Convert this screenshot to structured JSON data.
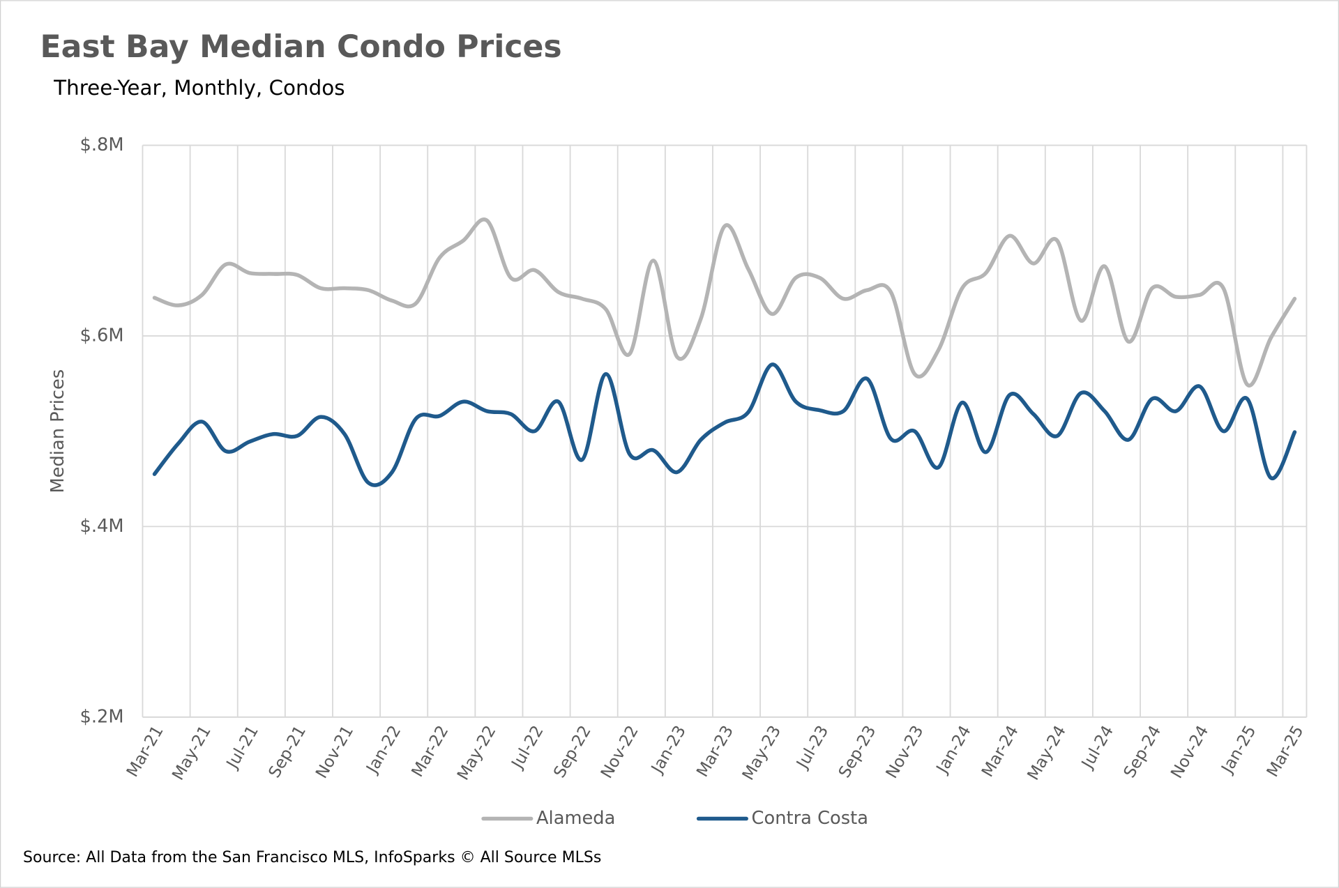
{
  "chart_data": {
    "type": "line",
    "title": "East Bay Median Condo Prices",
    "subtitle": "Three-Year, Monthly, Condos",
    "y_label": "Median Prices",
    "source": "Source: All Data from the San Francisco MLS, InfoSparks © All Source MLSs",
    "categories": [
      "Mar-21",
      null,
      "May-21",
      null,
      "Jul-21",
      null,
      "Sep-21",
      null,
      "Nov-21",
      null,
      "Jan-22",
      null,
      "Mar-22",
      null,
      "May-22",
      null,
      "Jul-22",
      null,
      "Sep-22",
      null,
      "Nov-22",
      null,
      "Jan-23",
      null,
      "Mar-23",
      null,
      "May-23",
      null,
      "Jul-23",
      null,
      "Sep-23",
      null,
      "Nov-23",
      null,
      "Jan-24",
      null,
      "Mar-24",
      null,
      "May-24",
      null,
      "Jul-24",
      null,
      "Sep-24",
      null,
      "Nov-24",
      null,
      "Jan-25",
      null,
      "Mar-25"
    ],
    "series": [
      {
        "name": "Alameda",
        "color": "#b4b4b4",
        "values": [
          640000,
          632000,
          643000,
          675000,
          666000,
          665000,
          664000,
          650000,
          650000,
          648000,
          637000,
          634000,
          682000,
          700000,
          721000,
          661000,
          669000,
          646000,
          639000,
          628000,
          581000,
          679000,
          578000,
          618000,
          715000,
          670000,
          623000,
          661000,
          661000,
          639000,
          648000,
          646000,
          560000,
          585000,
          650000,
          666000,
          705000,
          676000,
          700000,
          616000,
          673000,
          594000,
          650000,
          641000,
          643000,
          650000,
          549000,
          598000,
          639000
        ]
      },
      {
        "name": "Contra Costa",
        "color": "#1f5a8c",
        "values": [
          455000,
          487000,
          510000,
          479000,
          489000,
          497000,
          495000,
          515000,
          497000,
          446000,
          457000,
          513000,
          516000,
          531000,
          521000,
          518000,
          500000,
          531000,
          470000,
          560000,
          476000,
          480000,
          457000,
          491000,
          509000,
          520000,
          570000,
          531000,
          522000,
          521000,
          555000,
          492000,
          500000,
          462000,
          530000,
          478000,
          538000,
          518000,
          495000,
          540000,
          521000,
          491000,
          534000,
          521000,
          547000,
          500000,
          534000,
          451000,
          499000
        ]
      }
    ],
    "ylim": [
      200000,
      800000
    ],
    "yticks": [
      {
        "value": 200000,
        "label": "$.2M"
      },
      {
        "value": 400000,
        "label": "$.4M"
      },
      {
        "value": 600000,
        "label": "$.6M"
      },
      {
        "value": 800000,
        "label": "$.8M"
      }
    ],
    "grid": true,
    "legend": "bottom"
  }
}
